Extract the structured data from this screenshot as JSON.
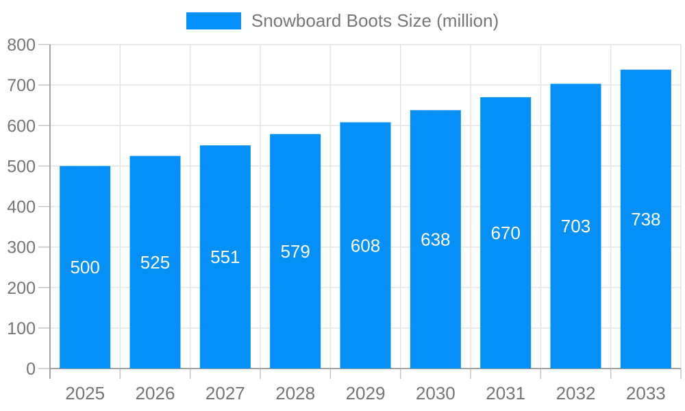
{
  "legend": {
    "label": "Snowboard Boots Size (million)",
    "swatch_icon": "blue-rect-swatch"
  },
  "colors": {
    "bar": "#0590f8",
    "bar_label_text": "#ffffff",
    "axis_text": "#757575",
    "axis_line": "#a3a3a3",
    "grid_line": "#e4e4e4",
    "tick_line": "#c4c4c4",
    "background": "#ffffff"
  },
  "chart_data": {
    "type": "bar",
    "title": "",
    "categories": [
      "2025",
      "2026",
      "2027",
      "2028",
      "2029",
      "2030",
      "2031",
      "2032",
      "2033"
    ],
    "series": [
      {
        "name": "Snowboard Boots Size (million)",
        "values": [
          500,
          525,
          551,
          579,
          608,
          638,
          670,
          703,
          738
        ]
      }
    ],
    "xlabel": "",
    "ylabel": "",
    "ylim": [
      0,
      800
    ],
    "ytick_step": 100,
    "ytick_labels": [
      "0",
      "100",
      "200",
      "300",
      "400",
      "500",
      "600",
      "700",
      "800"
    ],
    "grid": "on",
    "legend_position": "top-center",
    "value_labels": "inside-middle-white"
  }
}
